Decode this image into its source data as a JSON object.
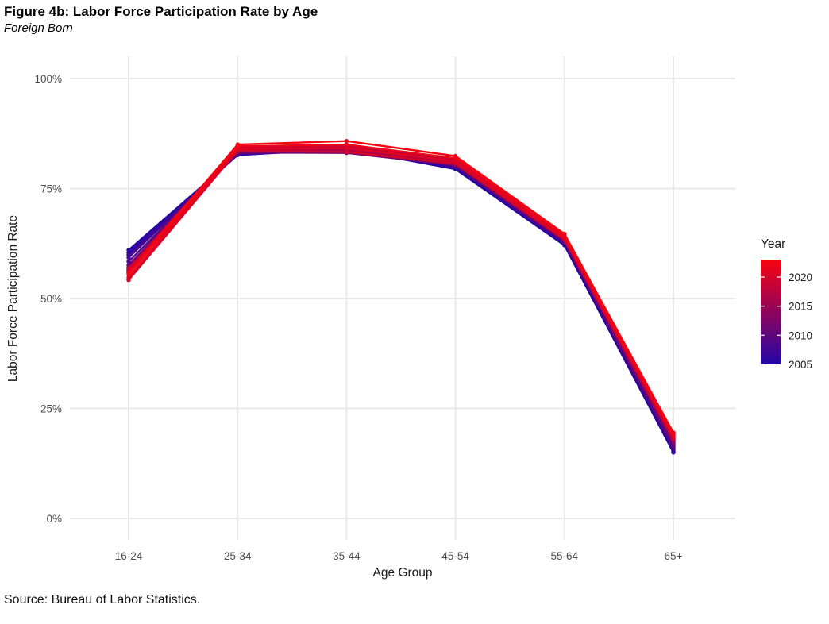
{
  "header": {
    "title": "Figure 4b: Labor Force Participation Rate by Age",
    "subtitle": "Foreign Born"
  },
  "caption": "Source: Bureau of Labor Statistics.",
  "chart_data": {
    "type": "line",
    "title": "Figure 4b: Labor Force Participation Rate by Age",
    "subtitle": "Foreign Born",
    "caption": "Source: Bureau of Labor Statistics.",
    "categories": [
      "16-24",
      "25-34",
      "35-44",
      "45-54",
      "55-64",
      "65+"
    ],
    "xlabel": "Age Group",
    "ylabel": "Labor Force Participation Rate",
    "ylim": [
      0,
      100
    ],
    "yticks": [
      0,
      25,
      50,
      75,
      100
    ],
    "ytick_labels": [
      "0%",
      "25%",
      "50%",
      "75%",
      "100%"
    ],
    "grid": true,
    "legend": {
      "title": "Year",
      "position": "right",
      "min_year": 2005,
      "max_year": 2023,
      "tick_years": [
        2020,
        2015,
        2010,
        2005
      ]
    },
    "colors": {
      "low_year": "#2306A8",
      "high_year": "#F90310",
      "gridline": "#E8E8E8",
      "tick_label": "#4d4d4d",
      "axis_text": "#1a1a1a"
    },
    "series": [
      {
        "name": "2005",
        "year": 2005,
        "values": [
          61.0,
          82.6,
          84.0,
          79.4,
          62.1,
          15.0
        ]
      },
      {
        "name": "2006",
        "year": 2006,
        "values": [
          60.4,
          82.7,
          84.1,
          79.7,
          62.3,
          15.3
        ]
      },
      {
        "name": "2007",
        "year": 2007,
        "values": [
          59.9,
          82.8,
          84.0,
          79.9,
          62.5,
          15.6
        ]
      },
      {
        "name": "2008",
        "year": 2008,
        "values": [
          59.3,
          82.9,
          83.9,
          80.1,
          62.8,
          16.0
        ]
      },
      {
        "name": "2009",
        "year": 2009,
        "values": [
          58.4,
          83.0,
          83.6,
          80.2,
          63.0,
          16.3
        ]
      },
      {
        "name": "2010",
        "year": 2010,
        "values": [
          57.6,
          83.1,
          83.2,
          80.3,
          63.1,
          16.6
        ]
      },
      {
        "name": "2011",
        "year": 2011,
        "values": [
          57.1,
          83.2,
          83.1,
          80.3,
          63.0,
          16.8
        ]
      },
      {
        "name": "2012",
        "year": 2012,
        "values": [
          56.7,
          83.3,
          83.2,
          80.4,
          63.2,
          17.1
        ]
      },
      {
        "name": "2013",
        "year": 2013,
        "values": [
          56.4,
          83.4,
          83.3,
          80.5,
          63.3,
          17.3
        ]
      },
      {
        "name": "2014",
        "year": 2014,
        "values": [
          56.1,
          83.5,
          83.4,
          80.7,
          63.5,
          17.6
        ]
      },
      {
        "name": "2015",
        "year": 2015,
        "values": [
          55.8,
          83.7,
          83.5,
          80.9,
          63.7,
          17.9
        ]
      },
      {
        "name": "2016",
        "year": 2016,
        "values": [
          55.9,
          83.9,
          83.7,
          81.1,
          63.9,
          18.2
        ]
      },
      {
        "name": "2017",
        "year": 2017,
        "values": [
          56.2,
          84.1,
          83.9,
          81.3,
          64.1,
          18.5
        ]
      },
      {
        "name": "2018",
        "year": 2018,
        "values": [
          56.6,
          84.3,
          84.3,
          81.6,
          64.3,
          18.9
        ]
      },
      {
        "name": "2019",
        "year": 2019,
        "values": [
          56.9,
          84.5,
          84.7,
          81.9,
          64.5,
          19.2
        ]
      },
      {
        "name": "2020",
        "year": 2020,
        "values": [
          54.2,
          83.6,
          83.3,
          80.7,
          63.4,
          18.1
        ]
      },
      {
        "name": "2021",
        "year": 2021,
        "values": [
          54.8,
          84.0,
          84.2,
          81.2,
          63.8,
          18.5
        ]
      },
      {
        "name": "2022",
        "year": 2022,
        "values": [
          55.5,
          84.6,
          85.0,
          81.9,
          64.3,
          19.0
        ]
      },
      {
        "name": "2023",
        "year": 2023,
        "values": [
          55.9,
          85.0,
          85.8,
          82.4,
          64.7,
          19.5
        ]
      }
    ]
  }
}
